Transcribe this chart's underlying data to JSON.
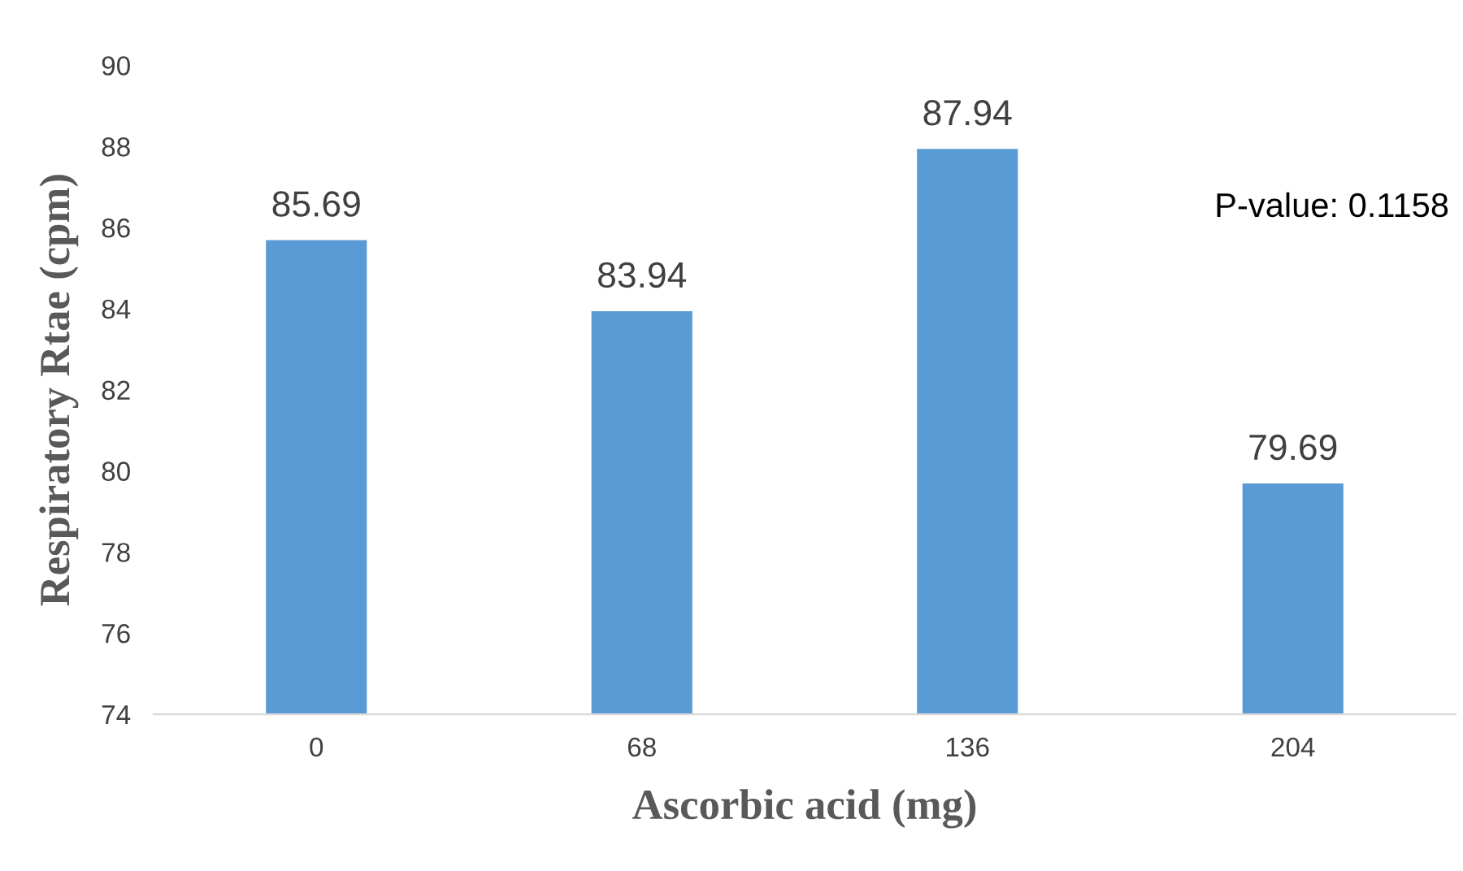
{
  "chart_data": {
    "type": "bar",
    "xlabel": "Ascorbic acid (mg)",
    "ylabel": "Respiratory Rtae (cpm)",
    "categories": [
      "0",
      "68",
      "136",
      "204"
    ],
    "values": [
      85.69,
      83.94,
      87.94,
      79.69
    ],
    "color": "#5b9bd5",
    "ylim": [
      74,
      90
    ],
    "yticks": [
      74,
      76,
      78,
      80,
      82,
      84,
      86,
      88,
      90
    ],
    "data_labels": true,
    "grid": false,
    "legend": false,
    "annotations": [
      "P-value: 0.1158"
    ]
  }
}
